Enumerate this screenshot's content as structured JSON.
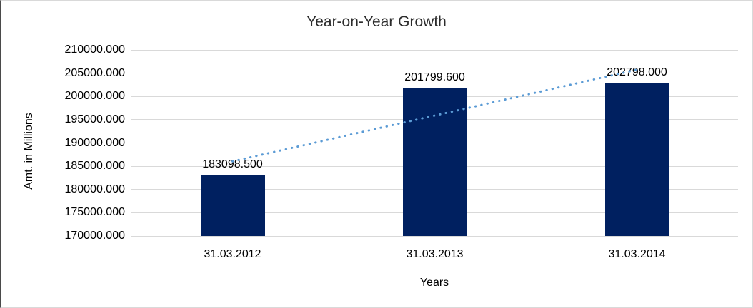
{
  "chart_data": {
    "type": "bar",
    "title": "Year-on-Year Growth",
    "xlabel": "Years",
    "ylabel": "Amt. in Millions",
    "categories": [
      "31.03.2012",
      "31.03.2013",
      "31.03.2014"
    ],
    "series": [
      {
        "name": "Amt. in Millions",
        "values": [
          183098.5,
          201799.6,
          202798.0
        ]
      }
    ],
    "data_labels": [
      "183098.500",
      "201799.600",
      "202798.000"
    ],
    "ylim": [
      170000,
      210000
    ],
    "ytick_step": 5000,
    "ytick_labels": [
      "170000.000",
      "175000.000",
      "180000.000",
      "185000.000",
      "190000.000",
      "195000.000",
      "200000.000",
      "205000.000",
      "210000.000"
    ],
    "grid": true,
    "legend": false,
    "bar_color": "#002060",
    "gridline_color": "#d9d9d9",
    "text_color": "#000000",
    "trendline": {
      "type": "linear",
      "style": "dotted",
      "color": "#5b9bd5",
      "start_value": 186049,
      "end_value": 205748
    }
  }
}
